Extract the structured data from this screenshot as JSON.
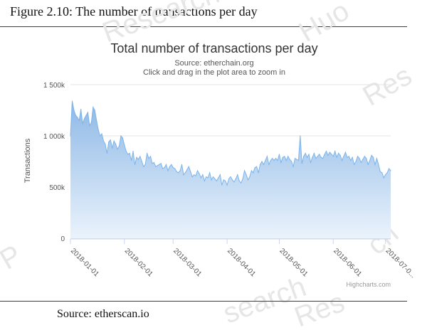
{
  "figure_caption": "Figure 2.10: The number of transactions per day",
  "source_note": "Source: etherscan.io",
  "colors": {
    "area_top": "#8eb8e6",
    "area_bottom": "#eaf3fc",
    "line": "#7cb5ec",
    "rule": "#2a3a7a"
  },
  "chart_data": {
    "type": "area",
    "title": "Total number of transactions per day",
    "subtitle": "Source: etherchain.org",
    "subtitle2": "Click and drag in the plot area to zoom in",
    "ylabel": "Transactions",
    "credits": "Highcharts.com",
    "ylim": [
      0,
      1500000
    ],
    "yticks": [
      0,
      500000,
      1000000,
      1500000
    ],
    "ytick_labels": [
      "0",
      "500k",
      "1 000k",
      "1 500k"
    ],
    "xlim": [
      "2018-01-01",
      "2018-07-04"
    ],
    "xtick_labels": [
      "2018-01-01",
      "2018-02-01",
      "2018-03-01",
      "2018-04-01",
      "2018-05-01",
      "2018-06-01",
      "2018-07-0..."
    ],
    "grid": true,
    "x": [
      "2018-01-01",
      "2018-01-02",
      "2018-01-03",
      "2018-01-04",
      "2018-01-05",
      "2018-01-06",
      "2018-01-07",
      "2018-01-08",
      "2018-01-09",
      "2018-01-10",
      "2018-01-11",
      "2018-01-12",
      "2018-01-13",
      "2018-01-14",
      "2018-01-15",
      "2018-01-16",
      "2018-01-17",
      "2018-01-18",
      "2018-01-19",
      "2018-01-20",
      "2018-01-21",
      "2018-01-22",
      "2018-01-23",
      "2018-01-24",
      "2018-01-25",
      "2018-01-26",
      "2018-01-27",
      "2018-01-28",
      "2018-01-29",
      "2018-01-30",
      "2018-01-31",
      "2018-02-01",
      "2018-02-02",
      "2018-02-03",
      "2018-02-04",
      "2018-02-05",
      "2018-02-06",
      "2018-02-07",
      "2018-02-08",
      "2018-02-09",
      "2018-02-10",
      "2018-02-11",
      "2018-02-12",
      "2018-02-13",
      "2018-02-14",
      "2018-02-15",
      "2018-02-16",
      "2018-02-17",
      "2018-02-18",
      "2018-02-19",
      "2018-02-20",
      "2018-02-21",
      "2018-02-22",
      "2018-02-23",
      "2018-02-24",
      "2018-02-25",
      "2018-02-26",
      "2018-02-27",
      "2018-02-28",
      "2018-03-01",
      "2018-03-02",
      "2018-03-03",
      "2018-03-04",
      "2018-03-05",
      "2018-03-06",
      "2018-03-07",
      "2018-03-08",
      "2018-03-09",
      "2018-03-10",
      "2018-03-11",
      "2018-03-12",
      "2018-03-13",
      "2018-03-14",
      "2018-03-15",
      "2018-03-16",
      "2018-03-17",
      "2018-03-18",
      "2018-03-19",
      "2018-03-20",
      "2018-03-21",
      "2018-03-22",
      "2018-03-23",
      "2018-03-24",
      "2018-03-25",
      "2018-03-26",
      "2018-03-27",
      "2018-03-28",
      "2018-03-29",
      "2018-03-30",
      "2018-03-31",
      "2018-04-01",
      "2018-04-02",
      "2018-04-03",
      "2018-04-04",
      "2018-04-05",
      "2018-04-06",
      "2018-04-07",
      "2018-04-08",
      "2018-04-09",
      "2018-04-10",
      "2018-04-11",
      "2018-04-12",
      "2018-04-13",
      "2018-04-14",
      "2018-04-15",
      "2018-04-16",
      "2018-04-17",
      "2018-04-18",
      "2018-04-19",
      "2018-04-20",
      "2018-04-21",
      "2018-04-22",
      "2018-04-23",
      "2018-04-24",
      "2018-04-25",
      "2018-04-26",
      "2018-04-27",
      "2018-04-28",
      "2018-04-29",
      "2018-04-30",
      "2018-05-01",
      "2018-05-02",
      "2018-05-03",
      "2018-05-04",
      "2018-05-05",
      "2018-05-06",
      "2018-05-07",
      "2018-05-08",
      "2018-05-09",
      "2018-05-10",
      "2018-05-11",
      "2018-05-12",
      "2018-05-13",
      "2018-05-14",
      "2018-05-15",
      "2018-05-16",
      "2018-05-17",
      "2018-05-18",
      "2018-05-19",
      "2018-05-20",
      "2018-05-21",
      "2018-05-22",
      "2018-05-23",
      "2018-05-24",
      "2018-05-25",
      "2018-05-26",
      "2018-05-27",
      "2018-05-28",
      "2018-05-29",
      "2018-05-30",
      "2018-05-31",
      "2018-06-01",
      "2018-06-02",
      "2018-06-03",
      "2018-06-04",
      "2018-06-05",
      "2018-06-06",
      "2018-06-07",
      "2018-06-08",
      "2018-06-09",
      "2018-06-10",
      "2018-06-11",
      "2018-06-12",
      "2018-06-13",
      "2018-06-14",
      "2018-06-15",
      "2018-06-16",
      "2018-06-17",
      "2018-06-18",
      "2018-06-19",
      "2018-06-20",
      "2018-06-21",
      "2018-06-22",
      "2018-06-23",
      "2018-06-24",
      "2018-06-25",
      "2018-06-26",
      "2018-06-27",
      "2018-06-28",
      "2018-06-29",
      "2018-06-30",
      "2018-07-01",
      "2018-07-02",
      "2018-07-03",
      "2018-07-04"
    ],
    "series": [
      {
        "values": [
          1000000,
          1340000,
          1250000,
          1200000,
          1180000,
          1150000,
          1260000,
          1120000,
          1170000,
          1200000,
          1230000,
          1100000,
          1130000,
          1280000,
          1250000,
          1150000,
          1060000,
          1000000,
          1020000,
          950000,
          920000,
          830000,
          940000,
          960000,
          880000,
          950000,
          920000,
          870000,
          900000,
          1000000,
          980000,
          910000,
          850000,
          820000,
          830000,
          760000,
          850000,
          720000,
          790000,
          770000,
          800000,
          750000,
          700000,
          720000,
          830000,
          780000,
          800000,
          730000,
          740000,
          700000,
          710000,
          720000,
          730000,
          680000,
          690000,
          720000,
          660000,
          700000,
          720000,
          690000,
          680000,
          650000,
          640000,
          660000,
          720000,
          620000,
          640000,
          670000,
          700000,
          650000,
          600000,
          620000,
          610000,
          660000,
          630000,
          590000,
          620000,
          560000,
          600000,
          590000,
          640000,
          570000,
          600000,
          580000,
          560000,
          590000,
          620000,
          520000,
          570000,
          560000,
          520000,
          580000,
          600000,
          570000,
          550000,
          580000,
          620000,
          560000,
          540000,
          580000,
          660000,
          620000,
          570000,
          600000,
          660000,
          640000,
          690000,
          700000,
          640000,
          720000,
          750000,
          720000,
          760000,
          800000,
          720000,
          760000,
          780000,
          760000,
          780000,
          760000,
          820000,
          740000,
          790000,
          800000,
          760000,
          800000,
          770000,
          750000,
          700000,
          780000,
          770000,
          760000,
          1000000,
          730000,
          800000,
          830000,
          790000,
          820000,
          740000,
          790000,
          830000,
          780000,
          800000,
          820000,
          790000,
          780000,
          820000,
          850000,
          810000,
          840000,
          820000,
          800000,
          850000,
          790000,
          830000,
          810000,
          760000,
          800000,
          840000,
          790000,
          800000,
          760000,
          790000,
          720000,
          750000,
          800000,
          780000,
          740000,
          770000,
          800000,
          780000,
          720000,
          760000,
          810000,
          790000,
          720000,
          780000,
          720000,
          650000,
          640000,
          590000,
          620000,
          640000,
          680000,
          660000
        ]
      }
    ]
  }
}
